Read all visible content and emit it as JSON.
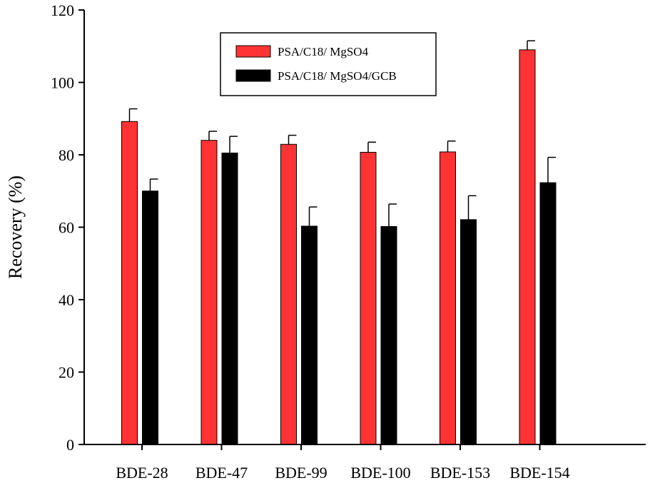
{
  "chart_data": {
    "type": "bar",
    "ylabel": "Recovery (%)",
    "xlabel": "",
    "ylim": [
      0,
      120
    ],
    "yticks": [
      0,
      20,
      40,
      60,
      80,
      100,
      120
    ],
    "categories": [
      "BDE-28",
      "BDE-47",
      "BDE-99",
      "BDE-100",
      "BDE-153",
      "BDE-154"
    ],
    "series": [
      {
        "name": "PSA/C18/ MgSO4",
        "color": "#ff3333",
        "values": [
          89.2,
          84.0,
          82.9,
          80.7,
          80.8,
          109.0
        ],
        "errors": [
          3.5,
          2.5,
          2.5,
          2.8,
          3.0,
          2.5
        ]
      },
      {
        "name": "PSA/C18/ MgSO4/GCB",
        "color": "#000000",
        "values": [
          70.0,
          80.5,
          60.3,
          60.2,
          62.1,
          72.3
        ],
        "errors": [
          3.3,
          4.6,
          5.3,
          6.2,
          6.6,
          7.0
        ]
      }
    ],
    "legend": "top-center",
    "grid": false
  }
}
